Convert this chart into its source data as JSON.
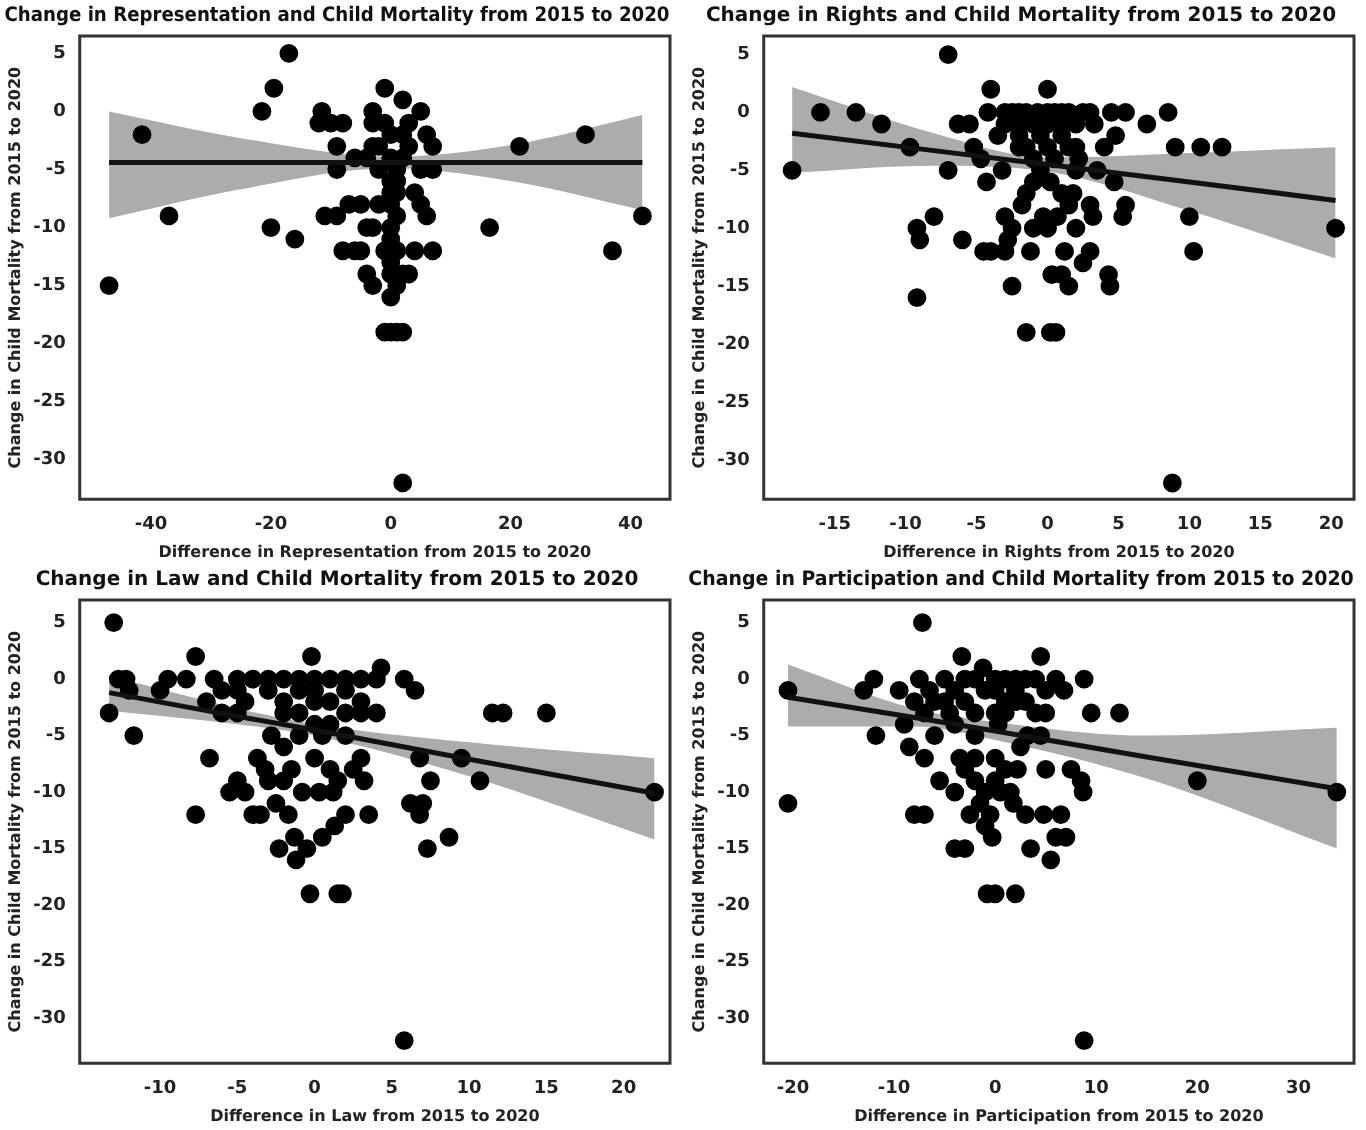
{
  "chart_data": [
    {
      "type": "scatter",
      "title": "Change in Representation and Child Mortality from 2015 to 2020",
      "xlabel": "Difference in Representation from 2015 to 2020",
      "ylabel": "Change in Child Mortality from 2015 to 2020",
      "xlim": [
        -51.9,
        46.6
      ],
      "xticks": [
        -40,
        -20,
        0,
        20,
        40
      ],
      "ylim": [
        -33.4,
        6.5
      ],
      "yticks": [
        -30,
        -25,
        -20,
        -15,
        -10,
        -5,
        0,
        5
      ],
      "grid": false,
      "legend": false,
      "marker": "circle",
      "series": [
        {
          "color": "#000000",
          "x": [
            -47,
            -41.5,
            -37,
            -21.5,
            -19.5,
            -17,
            -20,
            -16,
            16.5,
            21.5,
            32.5,
            37,
            42,
            2,
            -11.5,
            -12,
            -10,
            -9,
            -9,
            -8,
            -11,
            -9,
            -8,
            -6,
            -5,
            -4,
            -3,
            -7,
            -5,
            -6,
            -4,
            -3,
            -4,
            -2,
            -1,
            0,
            -1,
            0,
            1,
            2,
            1,
            2,
            3,
            4,
            7,
            6,
            5,
            7,
            7,
            4,
            5,
            2,
            5,
            6,
            -3,
            -3,
            -1,
            3,
            0,
            2,
            -2,
            3,
            0,
            2,
            1,
            0,
            1,
            0,
            1,
            0,
            1,
            0,
            0,
            1,
            0,
            0,
            -1,
            -2,
            -3
          ],
          "values": [
            -15,
            -2,
            -9,
            0,
            2,
            5,
            -10,
            -11,
            -10,
            -3,
            -2,
            -12,
            -9,
            -32,
            0,
            -1,
            -1,
            -3,
            -5,
            -1,
            -9,
            -9,
            -12,
            -12,
            -12,
            -14,
            -15,
            -8,
            -8,
            -4,
            -4,
            -10,
            -10,
            -8,
            2,
            -16,
            -19,
            -19,
            -19,
            -19,
            -15,
            -14,
            -14,
            -12,
            -12,
            -9,
            -5,
            -3,
            -5,
            -7,
            -8,
            1,
            0,
            -2,
            0,
            -1,
            -1,
            -1,
            -2,
            -2,
            -3,
            -3,
            -4,
            -4,
            -5,
            -6,
            -6,
            -7,
            -7,
            -8,
            -9,
            -10,
            -11,
            -12,
            -13,
            -14,
            -12,
            -5,
            -3
          ]
        },
        {
          "type": "line",
          "marker": "none",
          "color": "#111111",
          "x": [
            -47,
            -25,
            0,
            20,
            42
          ],
          "values": [
            -4.4,
            -4.4,
            -4.4,
            -4.4,
            -4.4
          ],
          "lower": [
            -9.2,
            -6.7,
            -4.9,
            -6,
            -8.5
          ],
          "upper": [
            0,
            -2.3,
            -3.9,
            -2.9,
            -0.3
          ]
        }
      ]
    },
    {
      "type": "scatter",
      "title": "Change in Rights and Child Mortality from 2015 to 2020",
      "xlabel": "Difference in Rights from 2015 to 2020",
      "ylabel": "Change in Child Mortality from 2015 to 2020",
      "xlim": [
        -20,
        21.6
      ],
      "xticks": [
        -15,
        -10,
        -5,
        0,
        5,
        10,
        15,
        20
      ],
      "ylim": [
        -33.4,
        6.6
      ],
      "yticks": [
        -30,
        -25,
        -20,
        -15,
        -10,
        -5,
        0,
        5
      ],
      "grid": false,
      "legend": false,
      "marker": "circle",
      "series": [
        {
          "color": "#000000",
          "x": [
            -18,
            -16,
            -13.5,
            -11.7,
            -9.7,
            -9.2,
            -9,
            -9.2,
            -8,
            -7,
            -7,
            -6.3,
            -6,
            -5.5,
            -5.2,
            -4.7,
            -4.5,
            -4.3,
            -4.2,
            -4,
            -4,
            -3.5,
            -3.2,
            -3,
            -3,
            -2.8,
            -2.5,
            -2.5,
            -2,
            -2,
            -1.8,
            -1.5,
            -1.5,
            -1.2,
            -1,
            -1,
            -0.7,
            -0.5,
            -0.3,
            0,
            0,
            0.2,
            0.3,
            0.2,
            0.6,
            0.7,
            1,
            1,
            1.2,
            1.5,
            1.5,
            1.8,
            2,
            2.2,
            2.5,
            3,
            3,
            3.5,
            3.2,
            3.3,
            4,
            4.3,
            4.4,
            4.5,
            4.7,
            4.8,
            5.5,
            5.5,
            5.3,
            7,
            8.5,
            8.8,
            9,
            10,
            10.3,
            10.8,
            12.3,
            20.3,
            -3,
            -2.5,
            -2,
            -1.5,
            0,
            0.5,
            1,
            1.5,
            2.5,
            3,
            -3,
            -2,
            -1,
            0,
            1,
            2,
            -1.5,
            0,
            1,
            1.5,
            2,
            2,
            -1,
            0.5,
            -0.5
          ],
          "values": [
            -5,
            0,
            0,
            -1,
            -3,
            -10,
            -11,
            -16,
            -9,
            5,
            -5,
            -1,
            -11,
            -1,
            -3,
            -4,
            -12,
            -6,
            0,
            -12,
            2,
            -2,
            -5,
            -9,
            -12,
            -11,
            -15,
            -10,
            -1,
            -3,
            -8,
            -7,
            -19,
            -12,
            -6,
            -10,
            0,
            -2,
            -9,
            2,
            -10,
            -6,
            -14,
            -19,
            -19,
            -9,
            -7,
            -14,
            -12,
            -15,
            -8,
            -7,
            -10,
            -4,
            -13,
            -8,
            -12,
            -5,
            -9,
            -1,
            -3,
            -14,
            -15,
            0,
            -6,
            -2,
            0,
            -8,
            -9,
            -1,
            0,
            -32,
            -3,
            -9,
            -12,
            -3,
            -3,
            -10,
            0,
            0,
            0,
            0,
            0,
            0,
            0,
            0,
            0,
            0,
            -1,
            -2,
            -1,
            -1,
            -1,
            -1,
            -3,
            -3,
            -2,
            -3,
            -3,
            -5,
            -4,
            -4,
            -5
          ]
        },
        {
          "type": "line",
          "marker": "none",
          "color": "#111111",
          "x": [
            -18,
            -8,
            0,
            10,
            20.3
          ],
          "values": [
            -1.8,
            -3.3,
            -4.5,
            -6,
            -7.6
          ],
          "lower": [
            -5.2,
            -4.6,
            -5.1,
            -8.5,
            -12.6
          ],
          "upper": [
            2.2,
            -1.8,
            -3.9,
            -3.5,
            -3
          ]
        }
      ]
    },
    {
      "type": "scatter",
      "title": "Change in Law and Child Mortality from 2015 to 2020",
      "xlabel": "Difference in Law from 2015 to 2020",
      "ylabel": "Change in Child Mortality from 2015 to 2020",
      "xlim": [
        -15.2,
        23
      ],
      "xticks": [
        -10,
        -5,
        0,
        5,
        10,
        15,
        20
      ],
      "ylim": [
        -34,
        7
      ],
      "yticks": [
        -30,
        -25,
        -20,
        -15,
        -10,
        -5,
        0,
        5
      ],
      "grid": false,
      "legend": false,
      "marker": "circle",
      "series": [
        {
          "color": "#000000",
          "x": [
            -13.3,
            -13,
            -12.7,
            -12.2,
            -12,
            -11.7,
            -10,
            -9.5,
            -8.3,
            -7.7,
            -7.7,
            -7,
            -6.8,
            -6.5,
            -6,
            -5.5,
            -5,
            -4.5,
            -4.5,
            -4,
            -3.7,
            -3.5,
            -3.2,
            -3,
            -2.8,
            -2.5,
            -2.3,
            -2,
            -2,
            -1.7,
            -1.5,
            -1.3,
            -1.2,
            -0.8,
            -0.5,
            -0.3,
            -0.2,
            0,
            0.3,
            0.5,
            0.5,
            1,
            1.2,
            1.3,
            1.5,
            1.8,
            1.5,
            2,
            2,
            2.5,
            3,
            3.2,
            3.5,
            4,
            4.3,
            5.8,
            5.8,
            6.2,
            6.5,
            6.8,
            6.8,
            7,
            7.3,
            7.5,
            8.7,
            9.5,
            10.7,
            11.5,
            12.2,
            15,
            22,
            -5,
            -4,
            -3,
            -2,
            -1,
            0,
            1,
            2,
            3,
            -5,
            -3,
            -2,
            -1,
            0,
            1,
            2,
            3,
            4,
            -2,
            -1,
            0,
            1,
            -1,
            0,
            2,
            3,
            -5,
            -6
          ],
          "values": [
            -3,
            5,
            0,
            0,
            -1,
            -5,
            -1,
            0,
            0,
            2,
            -12,
            -2,
            -7,
            0,
            -3,
            -10,
            -9,
            -10,
            -2,
            -12,
            -7,
            -12,
            -8,
            -9,
            -5,
            -11,
            -15,
            -6,
            -9,
            -12,
            -8,
            -14,
            -16,
            -10,
            -15,
            -19,
            2,
            -7,
            -10,
            -14,
            -5,
            -8,
            -10,
            -13,
            -19,
            -19,
            -9,
            -12,
            -5,
            -8,
            -7,
            -9,
            -12,
            0,
            1,
            -32,
            0,
            -11,
            -1,
            -7,
            -12,
            -11,
            -15,
            -9,
            -14,
            -7,
            -9,
            -3,
            -3,
            -3,
            -10,
            0,
            0,
            0,
            0,
            0,
            0,
            0,
            0,
            0,
            -1,
            -1,
            -2,
            -1,
            -1,
            -2,
            -1,
            -3,
            -3,
            -3,
            -3,
            -2,
            -4,
            -5,
            -4,
            -3,
            -2,
            -3,
            -1
          ]
        },
        {
          "type": "line",
          "marker": "none",
          "color": "#111111",
          "x": [
            -13.3,
            -5,
            0,
            10,
            22
          ],
          "values": [
            -1.2,
            -3.3,
            -4.5,
            -7.1,
            -10.1
          ],
          "lower": [
            -2.8,
            -4,
            -5,
            -8.6,
            -14.2
          ],
          "upper": [
            0.3,
            -2.6,
            -4,
            -5.6,
            -7
          ]
        }
      ]
    },
    {
      "type": "scatter",
      "title": "Change in Participation and Child Mortality from 2015 to 2020",
      "xlabel": "Difference in Participation from 2015 to 2020",
      "ylabel": "Change in Child Mortality from 2015 to 2020",
      "xlim": [
        -22.9,
        35.5
      ],
      "xticks": [
        -20,
        -10,
        0,
        10,
        20,
        30
      ],
      "ylim": [
        -34,
        7
      ],
      "yticks": [
        -30,
        -25,
        -20,
        -15,
        -10,
        -5,
        0,
        5
      ],
      "grid": false,
      "legend": false,
      "marker": "circle",
      "series": [
        {
          "color": "#000000",
          "x": [
            -20.5,
            -20.5,
            -13,
            -12,
            -11.8,
            -9.5,
            -9,
            -8.5,
            -8,
            -7.5,
            -7.2,
            -7,
            -7,
            -8,
            -7,
            -6.5,
            -6,
            -5.5,
            -5,
            -4.5,
            -4,
            -4,
            -3.5,
            -3.3,
            -3,
            -3,
            -2.5,
            -2,
            -2,
            -1.5,
            -1.2,
            -1,
            -1,
            -0.8,
            -0.5,
            -0.3,
            0,
            0,
            0,
            0.3,
            0.5,
            1,
            1.5,
            1.8,
            2,
            2.2,
            2.5,
            3,
            3.2,
            3.5,
            4.5,
            4.5,
            4.8,
            5,
            5,
            5.5,
            6,
            6.5,
            6.8,
            7,
            7.5,
            8.5,
            8.7,
            8.8,
            8.8,
            9.5,
            12.3,
            20,
            33.8,
            -5,
            -4,
            -3,
            -2,
            0,
            1,
            2,
            3,
            4,
            -3,
            -2,
            -1,
            0,
            1,
            2,
            3,
            -4,
            -2,
            0,
            1,
            2,
            5,
            6,
            -6,
            4
          ],
          "values": [
            -1,
            -11,
            -1,
            0,
            -5,
            -1,
            -4,
            -6,
            -2,
            0,
            5,
            -3,
            -7,
            -12,
            -12,
            -1,
            -5,
            -9,
            0,
            -3,
            -10,
            -15,
            -7,
            2,
            -8,
            -15,
            -12,
            -7,
            -9,
            -11,
            1,
            -10,
            -13,
            -19,
            -12,
            -14,
            -9,
            -7,
            -19,
            -4,
            -10,
            -8,
            -10,
            -11,
            -19,
            -8,
            -6,
            -12,
            -5,
            -15,
            2,
            -5,
            -12,
            -8,
            -3,
            -16,
            -14,
            -12,
            -1,
            -14,
            -8,
            -9,
            -10,
            0,
            -32,
            -3,
            -3,
            -9,
            -10,
            -2,
            -1,
            0,
            0,
            0,
            0,
            0,
            0,
            0,
            -2,
            -3,
            -1,
            -1,
            -2,
            -1,
            -2,
            -4,
            -5,
            -3,
            -3,
            -2,
            -1,
            0,
            -2,
            -3
          ]
        },
        {
          "type": "line",
          "marker": "none",
          "color": "#111111",
          "x": [
            -20.5,
            -8,
            0,
            15,
            33.8
          ],
          "values": [
            -1.6,
            -3.4,
            -4.6,
            -6.9,
            -9.7
          ],
          "lower": [
            -4.2,
            -4.2,
            -5.4,
            -8.8,
            -15
          ],
          "upper": [
            1.3,
            -2.6,
            -3.8,
            -5,
            -4.3
          ]
        }
      ]
    }
  ]
}
